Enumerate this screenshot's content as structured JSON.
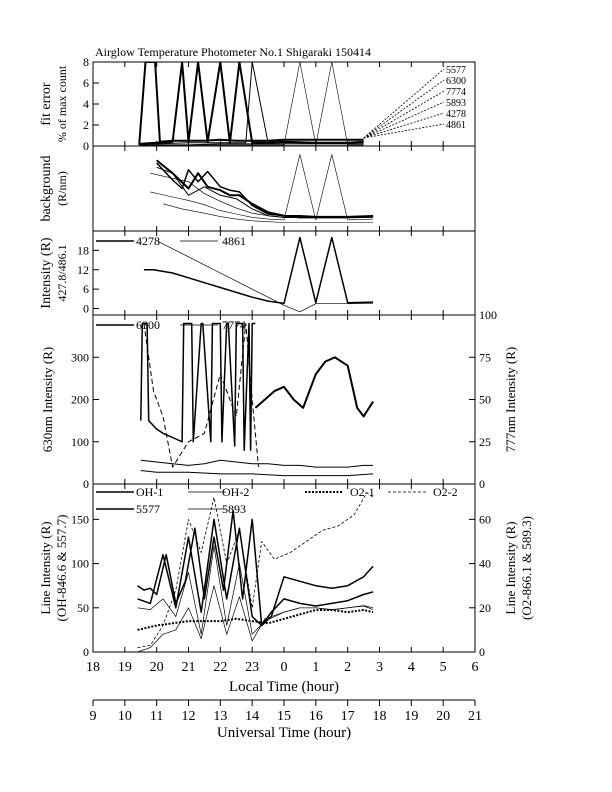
{
  "figure_title": "Airglow Temperature Photometer No.1   Shigaraki   150414",
  "x_axes": {
    "local": {
      "label": "Local Time (hour)",
      "ticks": [
        "18",
        "19",
        "20",
        "21",
        "22",
        "23",
        "0",
        "1",
        "2",
        "3",
        "4",
        "5",
        "6"
      ]
    },
    "universal": {
      "label": "Universal Time (hour)",
      "ticks": [
        "9",
        "10",
        "11",
        "12",
        "13",
        "14",
        "15",
        "16",
        "17",
        "18",
        "19",
        "20",
        "21"
      ]
    }
  },
  "chart_data": [
    {
      "type": "line",
      "panel": "fit-error",
      "ylabel_line1": "fit error",
      "ylabel_line2": "% of max count",
      "yticks": [
        "0",
        "2",
        "4",
        "6",
        "8"
      ],
      "ylim": [
        0,
        8
      ],
      "xlim_lt": [
        18,
        30
      ],
      "annotations": [
        "5577",
        "6300",
        "7774",
        "5893",
        "4278",
        "4861"
      ],
      "series": [
        {
          "name": "5577",
          "x": [
            19.45,
            19.65,
            19.8,
            19.95,
            20.1,
            20.5,
            21,
            21.5,
            22,
            22.5,
            23,
            23.5,
            24,
            25,
            26,
            26.5
          ],
          "y": [
            0.1,
            8,
            8,
            8,
            0.4,
            0.5,
            0.5,
            0.5,
            0.6,
            0.5,
            0.5,
            0.5,
            0.6,
            0.6,
            0.6,
            0.6
          ]
        },
        {
          "name": "6300",
          "x": [
            19.45,
            20,
            20.5,
            20.8,
            21,
            21.3,
            21.6,
            22,
            22.3,
            22.6,
            23,
            23.5,
            24,
            25,
            26,
            26.5
          ],
          "y": [
            0.2,
            0.3,
            0.4,
            8,
            0.4,
            8,
            0.4,
            8,
            0.3,
            8,
            0.3,
            0.3,
            0.4,
            0.3,
            0.3,
            0.4
          ]
        },
        {
          "name": "7774",
          "x": [
            19.45,
            20,
            21,
            22,
            22.8,
            23,
            23.5,
            24,
            25,
            26,
            26.5
          ],
          "y": [
            0.2,
            0.2,
            0.3,
            0.3,
            0.3,
            8,
            0.3,
            0.3,
            0.3,
            0.3,
            0.3
          ]
        },
        {
          "name": "5893",
          "x": [
            19.45,
            20,
            21,
            22,
            23,
            23.5,
            24,
            25,
            26,
            26.5
          ],
          "y": [
            0.1,
            0.1,
            0.1,
            0.2,
            0.2,
            0.2,
            0.2,
            0.2,
            0.2,
            0.2
          ]
        },
        {
          "name": "4278",
          "x": [
            19.45,
            20,
            21,
            22,
            23,
            23.5,
            24,
            24.5,
            25,
            25.5,
            26,
            26.5
          ],
          "y": [
            0.1,
            0.1,
            0.1,
            0.1,
            0.1,
            0.1,
            0.1,
            8,
            0.1,
            8,
            0.1,
            0.1
          ]
        },
        {
          "name": "4861",
          "x": [
            19.45,
            20,
            21,
            22,
            23,
            24,
            25,
            26,
            26.5
          ],
          "y": [
            0.05,
            0.05,
            0.05,
            0.05,
            0.05,
            0.05,
            0.05,
            0.05,
            0.05
          ]
        }
      ]
    },
    {
      "type": "line",
      "panel": "background",
      "ylabel_line1": "background",
      "ylabel_line2": "(R/nm)",
      "yticks": [],
      "ylim": [
        0,
        10
      ],
      "xlim_lt": [
        18,
        30
      ],
      "series": [
        {
          "name": "5577",
          "x": [
            20,
            20.5,
            21,
            21.3,
            21.6,
            22,
            22.3,
            22.6,
            23,
            23.5,
            24,
            24.5,
            25,
            26,
            26.8
          ],
          "y": [
            8.3,
            6.8,
            5,
            6.8,
            5.2,
            4.8,
            4.2,
            4.2,
            3.2,
            2.2,
            1.8,
            1.6,
            1.6,
            1.6,
            1.7
          ]
        },
        {
          "name": "6300",
          "x": [
            20,
            20.5,
            20.8,
            21,
            21.3,
            21.6,
            22,
            22.3,
            22.6,
            23,
            23.5,
            24,
            24.5,
            25,
            25.5,
            26,
            26.8
          ],
          "y": [
            8,
            6,
            5,
            7.2,
            5.8,
            7,
            5.2,
            4.8,
            4.6,
            3,
            2,
            1.8,
            1.8,
            1.7,
            1.7,
            1.7,
            1.8
          ]
        },
        {
          "name": "7774",
          "x": [
            20,
            20.5,
            21,
            21.5,
            22,
            22.5,
            23,
            23.5,
            24,
            24.5,
            25,
            25.5,
            26,
            26.8
          ],
          "y": [
            7.5,
            6.8,
            4.2,
            5.2,
            4.2,
            3.8,
            2.6,
            1.8,
            1.6,
            1.6,
            1.6,
            1.6,
            1.6,
            1.7
          ]
        },
        {
          "name": "5893",
          "x": [
            19.8,
            20.5,
            21,
            21.5,
            22,
            22.5,
            23,
            23.5,
            24,
            25,
            26,
            26.8
          ],
          "y": [
            6.8,
            6.2,
            5.8,
            4.4,
            3.5,
            2.7,
            2.1,
            1.8,
            1.6,
            1.6,
            1.6,
            1.6
          ]
        },
        {
          "name": "4278",
          "x": [
            19.8,
            20.5,
            21,
            21.5,
            22,
            22.5,
            23,
            23.5,
            24,
            24.5,
            25,
            25.5,
            26,
            26.8
          ],
          "y": [
            4.6,
            4,
            3.6,
            3.1,
            2.4,
            2,
            1.6,
            1.4,
            1.3,
            9,
            1.3,
            9,
            1.3,
            1.4
          ]
        },
        {
          "name": "4861",
          "x": [
            20.2,
            20.8,
            21.5,
            22,
            22.5,
            23,
            23.5,
            24,
            25,
            26,
            26.8
          ],
          "y": [
            3.2,
            2.6,
            2.1,
            1.7,
            1.4,
            1.2,
            1.1,
            1,
            1,
            1,
            1
          ]
        }
      ]
    },
    {
      "type": "line",
      "panel": "intensity-427-486",
      "ylabel_line1": "Intensity (R)",
      "ylabel_line2": "427.8/486.1",
      "yticks": [
        "0",
        "6",
        "12",
        "18"
      ],
      "ylim": [
        -2,
        24
      ],
      "xlim_lt": [
        18,
        30
      ],
      "legend": [
        "4278",
        "4861"
      ],
      "series": [
        {
          "name": "4278",
          "x": [
            19.6,
            19.9,
            20.2,
            20.5,
            21,
            21.5,
            22,
            22.5,
            23,
            23.5,
            24,
            24.5,
            25,
            25.5,
            26,
            26.8
          ],
          "y": [
            12,
            12,
            11.5,
            11,
            9.5,
            8,
            6.5,
            5,
            3.5,
            2.3,
            1.6,
            22,
            1.8,
            22,
            1.8,
            2
          ]
        },
        {
          "name": "4861",
          "x": [
            20,
            20.5,
            21,
            21.5,
            22,
            22.5,
            23,
            23.5,
            24,
            24.5,
            25,
            26,
            26.8
          ],
          "y": [
            21,
            18.5,
            16,
            13.5,
            11,
            8.5,
            6,
            3.5,
            1,
            -1,
            1.5,
            1.5,
            1.5
          ]
        }
      ]
    },
    {
      "type": "line",
      "panel": "630-777",
      "ylabel_left": "630nm Intensity (R)",
      "ylabel_right": "777nm Intensity (R)",
      "yticks_left": [
        "0",
        "100",
        "200",
        "300"
      ],
      "yticks_right": [
        "0",
        "25",
        "50",
        "75",
        "100"
      ],
      "ylim_left": [
        0,
        400
      ],
      "ylim_right": [
        0,
        100
      ],
      "xlim_lt": [
        18,
        30
      ],
      "legend": [
        "6300",
        "7774"
      ],
      "series": [
        {
          "name": "6300 (outline)",
          "x": [
            19.5,
            19.55,
            19.7,
            19.75,
            20,
            20.2,
            20.5,
            20.8,
            20.85,
            21.1,
            21.15,
            21.4,
            21.45,
            21.7,
            21.75,
            22,
            22.05,
            22.2,
            22.25,
            22.45,
            22.5,
            22.7,
            22.75,
            22.9,
            22.95,
            23,
            23.1
          ],
          "y": [
            150,
            380,
            380,
            150,
            130,
            120,
            110,
            100,
            380,
            380,
            100,
            380,
            380,
            100,
            380,
            380,
            100,
            380,
            380,
            90,
            380,
            380,
            80,
            380,
            80,
            380,
            380
          ]
        },
        {
          "name": "6300",
          "x": [
            23.1,
            23.4,
            23.7,
            24,
            24.3,
            24.6,
            25,
            25.3,
            25.6,
            26,
            26.3,
            26.5,
            26.8
          ],
          "y": [
            180,
            200,
            220,
            230,
            200,
            180,
            260,
            290,
            300,
            280,
            180,
            160,
            195
          ]
        },
        {
          "name": "7774",
          "x": [
            19.5,
            20,
            20.5,
            21,
            21.5,
            22,
            22.5,
            23,
            23.5,
            24,
            24.5,
            25,
            25.5,
            26,
            26.5,
            26.8
          ],
          "y": [
            14,
            13,
            12,
            11,
            12,
            14,
            13,
            12,
            12,
            11,
            11,
            10,
            10,
            10,
            11,
            11
          ]
        },
        {
          "name": "7774 (dashed)",
          "x": [
            19.6,
            19.9,
            20.2,
            20.5,
            21,
            21.5,
            22,
            22.5,
            22.8,
            23,
            23.2
          ],
          "y": [
            95,
            55,
            40,
            10,
            25,
            30,
            65,
            40,
            95,
            50,
            10
          ]
        },
        {
          "name": "7774 (low)",
          "x": [
            19.5,
            20,
            21,
            22,
            23,
            24,
            25,
            26,
            26.8
          ],
          "y": [
            8,
            7,
            7,
            6,
            6,
            5,
            5,
            5,
            6
          ]
        }
      ]
    },
    {
      "type": "line",
      "panel": "line-intensity",
      "ylabel_left_line1": "Line Intensity (R)",
      "ylabel_left_line2": "(OH-846.6 & 557.7)",
      "ylabel_right_line1": "Line Intensity (R)",
      "ylabel_right_line2": "(O2-866.1 & 589.3)",
      "yticks_left": [
        "0",
        "50",
        "100",
        "150"
      ],
      "yticks_right": [
        "0",
        "20",
        "40",
        "60"
      ],
      "ylim_left": [
        0,
        190
      ],
      "ylim_right": [
        0,
        76
      ],
      "xlim_lt": [
        18,
        30
      ],
      "legend": [
        "OH-1",
        "OH-2",
        "O2-1",
        "O2-2",
        "5577",
        "5893"
      ],
      "series": [
        {
          "name": "OH-1",
          "x": [
            19.4,
            19.6,
            19.8,
            20,
            20.3,
            20.6,
            20.9,
            21.2,
            21.5,
            21.8,
            22.1,
            22.4,
            22.7,
            23,
            23.3,
            23.6,
            24,
            24.5,
            25,
            25.5,
            26,
            26.5,
            26.8
          ],
          "y": [
            75,
            70,
            72,
            65,
            110,
            55,
            80,
            140,
            60,
            130,
            70,
            160,
            60,
            150,
            30,
            40,
            85,
            80,
            75,
            72,
            75,
            85,
            97
          ]
        },
        {
          "name": "OH-2",
          "x": [
            19.4,
            19.8,
            20.2,
            20.6,
            21,
            21.4,
            21.8,
            22.2,
            22.6,
            23,
            23.4,
            24,
            24.5,
            25,
            25.5,
            26,
            26.5,
            26.8
          ],
          "y": [
            50,
            48,
            60,
            40,
            90,
            20,
            120,
            30,
            100,
            20,
            35,
            45,
            50,
            50,
            48,
            50,
            52,
            48
          ]
        },
        {
          "name": "O2-1",
          "x": [
            19.4,
            20,
            21,
            22,
            22.5,
            23,
            23.5,
            24,
            24.5,
            25,
            25.5,
            26,
            26.5,
            26.8
          ],
          "y": [
            10,
            12,
            14,
            14,
            15,
            14,
            13,
            15,
            17,
            19,
            19,
            18,
            19,
            18
          ]
        },
        {
          "name": "O2-2",
          "x": [
            19.4,
            19.8,
            20.2,
            20.6,
            21,
            21.4,
            21.8,
            22.2,
            22.6,
            23,
            23.3,
            23.7,
            24.2,
            24.7,
            25.2,
            25.7,
            26.2,
            26.6,
            26.8
          ],
          "y": [
            2,
            3,
            12,
            28,
            60,
            45,
            70,
            40,
            55,
            20,
            50,
            42,
            45,
            50,
            55,
            57,
            62,
            72,
            70
          ]
        },
        {
          "name": "5577",
          "x": [
            19.4,
            19.8,
            20.2,
            20.6,
            21,
            21.4,
            21.8,
            22.2,
            22.6,
            23,
            23.3,
            23.6,
            24,
            24.5,
            25,
            25.5,
            26,
            26.5,
            26.8
          ],
          "y": [
            60,
            55,
            110,
            50,
            130,
            45,
            150,
            60,
            140,
            40,
            30,
            45,
            60,
            55,
            52,
            55,
            58,
            65,
            68
          ]
        },
        {
          "name": "5893",
          "x": [
            19.4,
            19.8,
            20.2,
            20.6,
            21,
            21.4,
            21.8,
            22.2,
            22.6,
            23,
            23.4,
            24,
            24.5,
            25,
            25.5,
            26,
            26.5,
            26.8
          ],
          "y": [
            0,
            2,
            8,
            10,
            20,
            6,
            30,
            8,
            25,
            5,
            15,
            18,
            20,
            20,
            19,
            20,
            21,
            20
          ]
        }
      ]
    }
  ]
}
